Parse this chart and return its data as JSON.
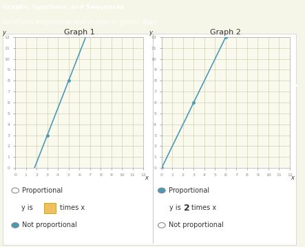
{
  "header_text": "Graphs, Functions, and Sequences",
  "subtitle_text": "Identifying proportional relationships in graphs: Basic",
  "header_bg": "#3ab8c8",
  "bg_color": "#f5f5e8",
  "graph_bg": "#f9f9ee",
  "graph_border": "#aaaaaa",
  "graph1_title": "Graph 1",
  "graph2_title": "Graph 2",
  "graph1_points": [
    [
      3,
      3
    ],
    [
      5,
      8
    ]
  ],
  "graph2_points": [
    [
      0,
      0
    ],
    [
      3,
      6
    ],
    [
      6,
      12
    ]
  ],
  "line_color": "#4a9ab5",
  "point_color": "#4a9ab5",
  "axis_range": [
    0,
    12
  ],
  "grid_color": "#c8c8a0",
  "tick_color": "#888888",
  "label1_proportional": "Proportional",
  "label1_not_proportional": "Not proportional",
  "label2_proportional": "Proportional",
  "label2_not_proportional": "Not proportional",
  "graph1_selected": "not_proportional",
  "graph2_selected": "proportional",
  "radio_selected_color": "#4a9ab5",
  "radio_unselected_color": "#ffffff",
  "text_color": "#333333",
  "font_size": 8,
  "title_font_size": 7,
  "side_panel_color": "#5bb8d4",
  "box_fill": "#f0c060",
  "box_edge": "#ccaa00",
  "separator_color": "#cccccc"
}
